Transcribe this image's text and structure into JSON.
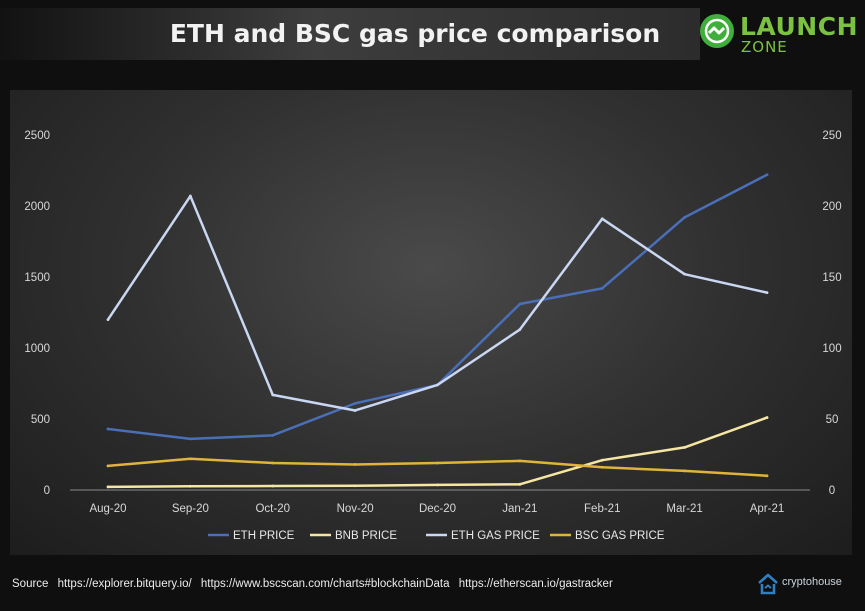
{
  "title": "ETH and BSC gas price comparison",
  "logo": {
    "name": "LAUNCH",
    "sub": "ZONE"
  },
  "footer": {
    "label": "Source",
    "links": [
      "https://explorer.bitquery.io/",
      "https://www.bscscan.com/charts#blockchainData",
      "https://etherscan.io/gastracker"
    ]
  },
  "brand": "cryptohouse",
  "colors": {
    "eth_price": "#4a6fb8",
    "bnb_price": "#f5e6a3",
    "eth_gas": "#c9d7f2",
    "bsc_gas": "#e0b43a",
    "logo_green": "#7cc242"
  },
  "chart_data": {
    "type": "line",
    "categories": [
      "Aug-20",
      "Sep-20",
      "Oct-20",
      "Nov-20",
      "Dec-20",
      "Jan-21",
      "Feb-21",
      "Mar-21",
      "Apr-21"
    ],
    "y_left": {
      "ylim": [
        0,
        2500
      ],
      "ticks": [
        "0",
        "500",
        "1000",
        "1500",
        "2000",
        "2500"
      ]
    },
    "y_right": {
      "ylim": [
        0,
        250
      ],
      "ticks": [
        "0",
        "50",
        "100",
        "150",
        "200",
        "250"
      ]
    },
    "grid": false,
    "legend_position": "bottom",
    "series": [
      {
        "name": "ETH PRICE",
        "axis": "left",
        "color": "#4a6fb8",
        "values": [
          430,
          360,
          385,
          610,
          740,
          1310,
          1420,
          1920,
          2220
        ]
      },
      {
        "name": "BNB PRICE",
        "axis": "right",
        "color": "#f5e6a3",
        "values": [
          2.2,
          2.6,
          2.8,
          3.0,
          3.6,
          4.0,
          21,
          30,
          51
        ]
      },
      {
        "name": "ETH GAS PRICE",
        "axis": "right",
        "color": "#c9d7f2",
        "values": [
          120,
          207,
          67,
          56,
          74,
          113,
          191,
          152,
          139
        ]
      },
      {
        "name": "BSC GAS PRICE",
        "axis": "right",
        "color": "#e0b43a",
        "values": [
          17,
          22,
          19,
          18,
          19,
          20.5,
          16,
          13.5,
          10
        ]
      }
    ]
  }
}
